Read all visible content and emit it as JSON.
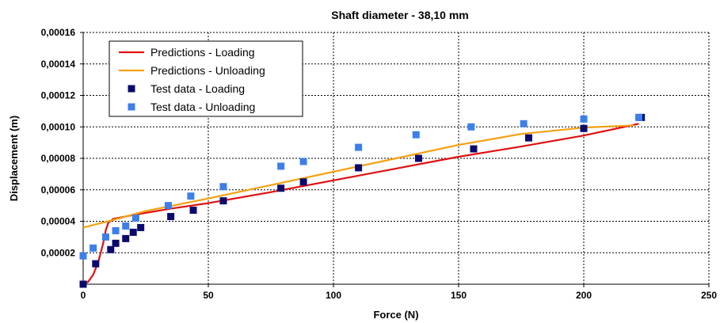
{
  "chart_data": {
    "type": "scatter",
    "title": "Shaft diameter - 38,10 mm",
    "xlabel": "Force (N)",
    "ylabel": "Displacement (m)",
    "xlim": [
      0,
      250
    ],
    "ylim": [
      0,
      0.00016
    ],
    "xticks": [
      0,
      50,
      100,
      150,
      200,
      250
    ],
    "xtick_labels": [
      "0",
      "50",
      "100",
      "150",
      "200",
      "250"
    ],
    "yticks": [
      2e-05,
      4e-05,
      6e-05,
      8e-05,
      0.0001,
      0.00012,
      0.00014,
      0.00016
    ],
    "ytick_labels": [
      "0,00002",
      "0,00004",
      "0,00006",
      "0,00008",
      "0,00010",
      "0,00012",
      "0,00014",
      "0,00016"
    ],
    "grid": true,
    "legend_position": "top-left",
    "series": [
      {
        "name": "Predictions - Loading",
        "kind": "line",
        "color": "#e01010",
        "points": [
          [
            0,
            0
          ],
          [
            2,
            1.5e-06
          ],
          [
            4,
            6e-06
          ],
          [
            6,
            1.4e-05
          ],
          [
            8,
            2.6e-05
          ],
          [
            9,
            3.4e-05
          ],
          [
            10,
            3.9e-05
          ],
          [
            12,
            4.15e-05
          ],
          [
            20,
            4.4e-05
          ],
          [
            35,
            4.8e-05
          ],
          [
            50,
            5.15e-05
          ],
          [
            75,
            5.85e-05
          ],
          [
            100,
            6.6e-05
          ],
          [
            125,
            7.35e-05
          ],
          [
            150,
            8.1e-05
          ],
          [
            175,
            8.75e-05
          ],
          [
            200,
            9.45e-05
          ],
          [
            222,
            0.000102
          ]
        ]
      },
      {
        "name": "Predictions - Unloading",
        "kind": "line",
        "color": "#f5a010",
        "points": [
          [
            0,
            3.6e-05
          ],
          [
            10,
            4e-05
          ],
          [
            25,
            4.65e-05
          ],
          [
            50,
            5.45e-05
          ],
          [
            75,
            6.3e-05
          ],
          [
            100,
            7.15e-05
          ],
          [
            125,
            8e-05
          ],
          [
            150,
            8.85e-05
          ],
          [
            175,
            9.55e-05
          ],
          [
            200,
            9.95e-05
          ],
          [
            220,
            0.000101
          ]
        ]
      },
      {
        "name": "Test data - Loading",
        "kind": "marker",
        "color": "#0a0a6e",
        "points": [
          [
            0,
            0
          ],
          [
            5,
            1.3e-05
          ],
          [
            11,
            2.2e-05
          ],
          [
            13,
            2.6e-05
          ],
          [
            17,
            2.9e-05
          ],
          [
            20,
            3.3e-05
          ],
          [
            23,
            3.6e-05
          ],
          [
            35,
            4.3e-05
          ],
          [
            44,
            4.7e-05
          ],
          [
            56,
            5.3e-05
          ],
          [
            79,
            6.1e-05
          ],
          [
            88,
            6.5e-05
          ],
          [
            110,
            7.4e-05
          ],
          [
            134,
            8e-05
          ],
          [
            156,
            8.6e-05
          ],
          [
            178,
            9.3e-05
          ],
          [
            200,
            9.9e-05
          ],
          [
            223,
            0.000106
          ]
        ]
      },
      {
        "name": "Test data - Unloading",
        "kind": "marker",
        "color": "#3d7fe8",
        "points": [
          [
            0,
            1.8e-05
          ],
          [
            4,
            2.3e-05
          ],
          [
            9,
            3e-05
          ],
          [
            13,
            3.4e-05
          ],
          [
            17,
            3.7e-05
          ],
          [
            21,
            4.2e-05
          ],
          [
            34,
            5e-05
          ],
          [
            43,
            5.6e-05
          ],
          [
            56,
            6.2e-05
          ],
          [
            79,
            7.5e-05
          ],
          [
            88,
            7.8e-05
          ],
          [
            110,
            8.7e-05
          ],
          [
            133,
            9.5e-05
          ],
          [
            155,
            0.0001
          ],
          [
            176,
            0.000102
          ],
          [
            200,
            0.000105
          ],
          [
            222,
            0.000106
          ]
        ]
      }
    ]
  }
}
